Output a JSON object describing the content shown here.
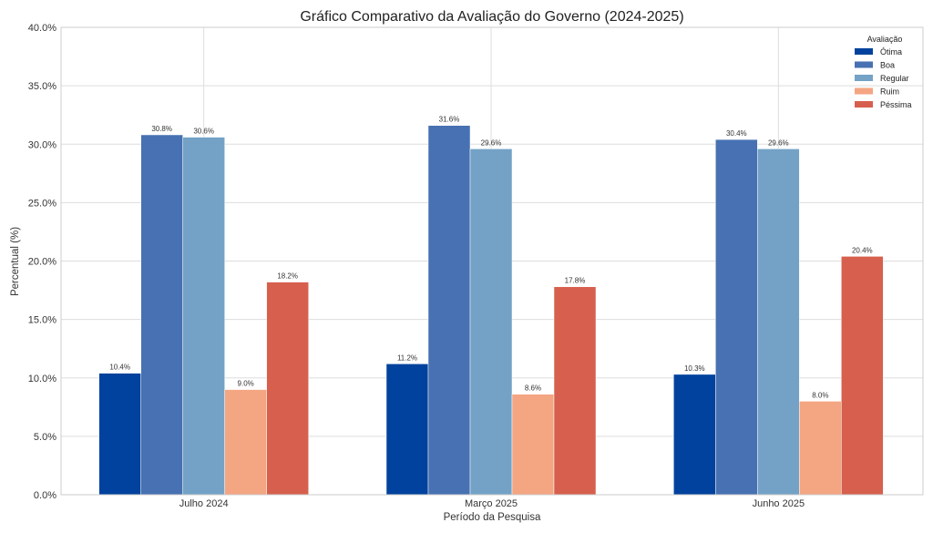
{
  "chart_data": {
    "type": "bar",
    "title": "Gráfico Comparativo da Avaliação do Governo (2024-2025)",
    "xlabel": "Período da Pesquisa",
    "ylabel": "Percentual (%)",
    "ylim": [
      0,
      40
    ],
    "yticks": [
      0,
      5,
      10,
      15,
      20,
      25,
      30,
      35,
      40
    ],
    "ytick_labels": [
      "0.0%",
      "5.0%",
      "10.0%",
      "15.0%",
      "20.0%",
      "25.0%",
      "30.0%",
      "35.0%",
      "40.0%"
    ],
    "grid": true,
    "categories": [
      "Julho 2024",
      "Março 2025",
      "Junho 2025"
    ],
    "legend": {
      "title": "Avaliação",
      "placement": "top-right"
    },
    "series": [
      {
        "name": "Ótima",
        "color": "#00429d",
        "values": [
          10.4,
          11.2,
          10.3
        ],
        "labels": [
          "10.4%",
          "11.2%",
          "10.3%"
        ]
      },
      {
        "name": "Boa",
        "color": "#4771b2",
        "values": [
          30.8,
          31.6,
          30.4
        ],
        "labels": [
          "30.8%",
          "31.6%",
          "30.4%"
        ]
      },
      {
        "name": "Regular",
        "color": "#73a2c6",
        "values": [
          30.6,
          29.6,
          29.6
        ],
        "labels": [
          "30.6%",
          "29.6%",
          "29.6%"
        ]
      },
      {
        "name": "Ruim",
        "color": "#f4a582",
        "values": [
          9.0,
          8.6,
          8.0
        ],
        "labels": [
          "9.0%",
          "8.6%",
          "8.0%"
        ]
      },
      {
        "name": "Péssima",
        "color": "#d6604d",
        "values": [
          18.2,
          17.8,
          20.4
        ],
        "labels": [
          "18.2%",
          "17.8%",
          "20.4%"
        ]
      }
    ]
  }
}
